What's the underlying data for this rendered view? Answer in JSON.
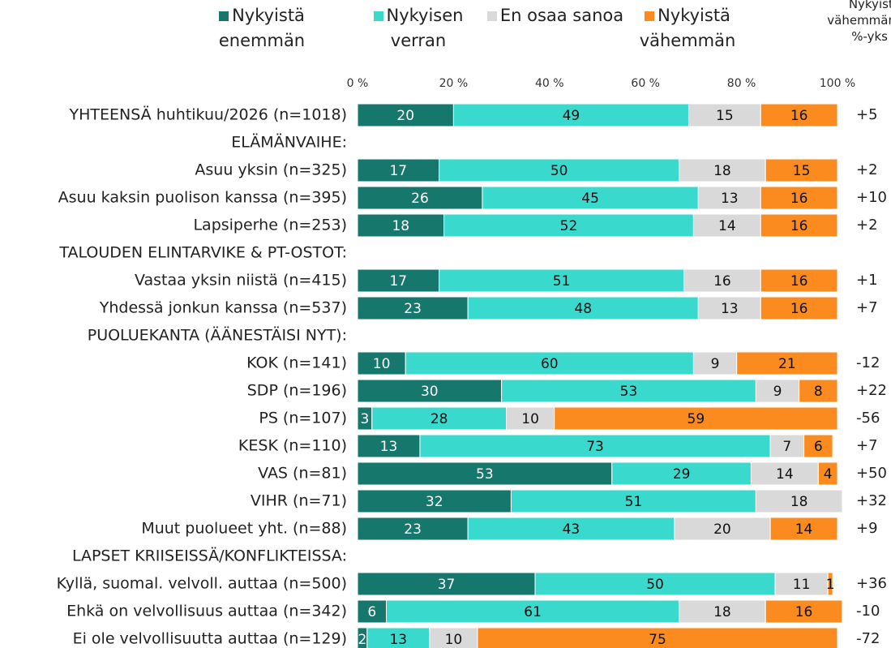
{
  "chart_data": {
    "type": "stacked_bar_horizontal",
    "xlim": [
      0,
      100
    ],
    "xticks": [
      {
        "value": 0,
        "label": "0 %"
      },
      {
        "value": 20,
        "label": "20 %"
      },
      {
        "value": 40,
        "label": "40 %"
      },
      {
        "value": 60,
        "label": "60 %"
      },
      {
        "value": 80,
        "label": "80 %"
      },
      {
        "value": 100,
        "label": "100 %"
      }
    ],
    "categories": [
      "YHTEENSÄ huhtikuu/2026 (n=1018)",
      "ELÄMÄNVAIHE:",
      "Asuu yksin (n=325)",
      "Asuu kaksin puolison kanssa (n=395)",
      "Lapsiperhe (n=253)",
      "TALOUDEN ELINTARVIKE & PT-OSTOT:",
      "Vastaa yksin niistä (n=415)",
      "Yhdessä jonkun kanssa (n=537)",
      "PUOLUEKANTA (ÄÄNESTÄISI NYT):",
      "KOK (n=141)",
      "SDP (n=196)",
      "PS (n=107)",
      "KESK (n=110)",
      "VAS (n=81)",
      "VIHR (n=71)",
      "Muut puolueet yht. (n=88)",
      "LAPSET KRIISEISSÄ/KONFLIKTEISSA:",
      "Kyllä, suomal. velvoll. auttaa (n=500)",
      "Ehkä on velvollisuus auttaa (n=342)",
      "Ei ole velvollisuutta auttaa (n=129)"
    ],
    "series": [
      {
        "name": "Nykyistä enemmän",
        "color": "#16776c",
        "label_color": "#ffffff",
        "values": [
          20,
          null,
          17,
          26,
          18,
          null,
          17,
          23,
          null,
          10,
          30,
          3,
          13,
          53,
          32,
          23,
          null,
          37,
          6,
          2
        ]
      },
      {
        "name": "Nykyisen verran",
        "color": "#39dacd",
        "label_color": "#111111",
        "values": [
          49,
          null,
          50,
          45,
          52,
          null,
          51,
          48,
          null,
          60,
          53,
          28,
          73,
          29,
          51,
          43,
          null,
          50,
          61,
          13
        ]
      },
      {
        "name": "En osaa sanoa",
        "color": "#d9d9d9",
        "label_color": "#111111",
        "values": [
          15,
          null,
          18,
          13,
          14,
          null,
          16,
          13,
          null,
          9,
          9,
          10,
          7,
          14,
          18,
          20,
          null,
          11,
          18,
          10
        ]
      },
      {
        "name": "Nykyistä vähemmän",
        "color": "#fb8b1e",
        "label_color": "#111111",
        "values": [
          16,
          null,
          15,
          16,
          16,
          null,
          16,
          16,
          null,
          21,
          8,
          59,
          6,
          4,
          0,
          14,
          null,
          1,
          16,
          75
        ]
      }
    ],
    "net": {
      "title": [
        "Nykyistä",
        "vähemmän",
        "%-yks"
      ],
      "values": [
        5,
        null,
        2,
        10,
        2,
        null,
        1,
        7,
        null,
        -12,
        22,
        -56,
        7,
        50,
        32,
        9,
        null,
        36,
        -10,
        -72
      ],
      "value_labels": [
        "+5",
        null,
        "+2",
        "+10",
        "+2",
        null,
        "+1",
        "+7",
        null,
        "-12",
        "+22",
        "-56",
        "+7",
        "+50",
        "+32",
        "+9",
        null,
        "+36",
        "-10",
        "-72"
      ]
    }
  }
}
